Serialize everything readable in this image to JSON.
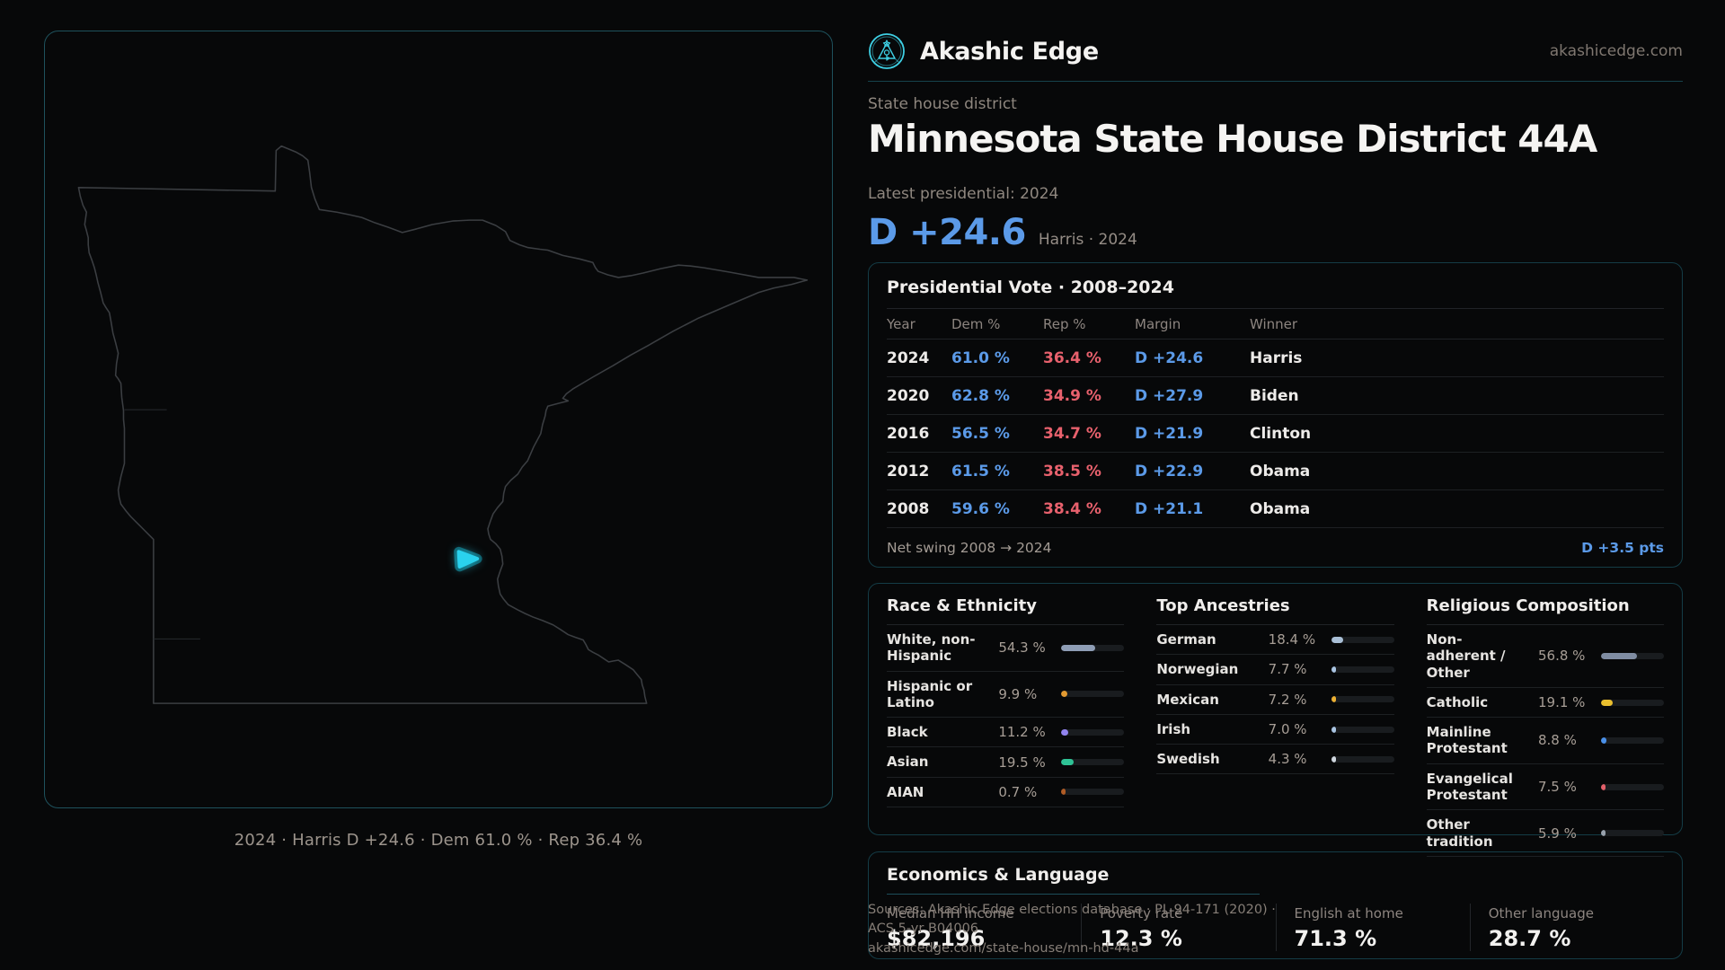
{
  "brand": {
    "name": "Akashic Edge",
    "domain": "akashicedge.com"
  },
  "header": {
    "kicker": "State house district",
    "title": "Minnesota State House District 44A",
    "latest_label": "Latest presidential: 2024",
    "margin_big": "D +24.6",
    "margin_context": "Harris · 2024"
  },
  "map": {
    "caption": "2024 · Harris D +24.6 · Dem 61.0 % · Rep 36.4 %"
  },
  "colors": {
    "accent_cyan": "#2ad2ee",
    "dem_blue": "#5b9ae8",
    "rep_red": "#e8616d"
  },
  "presidential": {
    "title": "Presidential Vote · 2008–2024",
    "columns": [
      "Year",
      "Dem %",
      "Rep %",
      "Margin",
      "Winner"
    ],
    "rows": [
      {
        "year": "2024",
        "dem": "61.0 %",
        "rep": "36.4 %",
        "margin": "D +24.6",
        "winner": "Harris"
      },
      {
        "year": "2020",
        "dem": "62.8 %",
        "rep": "34.9 %",
        "margin": "D +27.9",
        "winner": "Biden"
      },
      {
        "year": "2016",
        "dem": "56.5 %",
        "rep": "34.7 %",
        "margin": "D +21.9",
        "winner": "Clinton"
      },
      {
        "year": "2012",
        "dem": "61.5 %",
        "rep": "38.5 %",
        "margin": "D +22.9",
        "winner": "Obama"
      },
      {
        "year": "2008",
        "dem": "59.6 %",
        "rep": "38.4 %",
        "margin": "D +21.1",
        "winner": "Obama"
      }
    ],
    "net_swing_label": "Net swing 2008 → 2024",
    "net_swing_value": "D +3.5 pts"
  },
  "race": {
    "title": "Race & Ethnicity",
    "rows": [
      {
        "label": "White, non-Hispanic",
        "value": "54.3 %",
        "pct": 54.3,
        "color": "#8e9db5"
      },
      {
        "label": "Hispanic or Latino",
        "value": "9.9 %",
        "pct": 9.9,
        "color": "#e39a31"
      },
      {
        "label": "Black",
        "value": "11.2 %",
        "pct": 11.2,
        "color": "#9183ee"
      },
      {
        "label": "Asian",
        "value": "19.5 %",
        "pct": 19.5,
        "color": "#2ec295"
      },
      {
        "label": "AIAN",
        "value": "0.7 %",
        "pct": 0.7,
        "color": "#b05c25"
      }
    ]
  },
  "ancestries": {
    "title": "Top Ancestries",
    "rows": [
      {
        "label": "German",
        "value": "18.4 %",
        "pct": 18.4,
        "color": "#a9bfd6"
      },
      {
        "label": "Norwegian",
        "value": "7.7 %",
        "pct": 7.7,
        "color": "#a9c4e2"
      },
      {
        "label": "Mexican",
        "value": "7.2 %",
        "pct": 7.2,
        "color": "#ecb033"
      },
      {
        "label": "Irish",
        "value": "7.0 %",
        "pct": 7.0,
        "color": "#a9c4e2"
      },
      {
        "label": "Swedish",
        "value": "4.3 %",
        "pct": 4.3,
        "color": "#cfd6de"
      }
    ]
  },
  "religion": {
    "title": "Religious Composition",
    "rows": [
      {
        "label": "Non-adherent / Other",
        "value": "56.8 %",
        "pct": 56.8,
        "color": "#7f8ca2"
      },
      {
        "label": "Catholic",
        "value": "19.1 %",
        "pct": 19.1,
        "color": "#eabf2e"
      },
      {
        "label": "Mainline Protestant",
        "value": "8.8 %",
        "pct": 8.8,
        "color": "#4a90e8"
      },
      {
        "label": "Evangelical Protestant",
        "value": "7.5 %",
        "pct": 7.5,
        "color": "#e2606a"
      },
      {
        "label": "Other tradition",
        "value": "5.9 %",
        "pct": 5.9,
        "color": "#98a1ac"
      }
    ]
  },
  "economics": {
    "title": "Economics & Language",
    "stats": [
      {
        "label": "Median HH income",
        "value": "$82,196"
      },
      {
        "label": "Poverty rate",
        "value": "12.3 %"
      },
      {
        "label": "English at home",
        "value": "71.3 %"
      },
      {
        "label": "Other language",
        "value": "28.7 %"
      }
    ]
  },
  "footer": {
    "sources": "Sources: Akashic Edge elections database · PL 94-171 (2020) · ACS 5-yr B04006",
    "url": "akashicedge.com/state-house/mn-hd-44a"
  }
}
